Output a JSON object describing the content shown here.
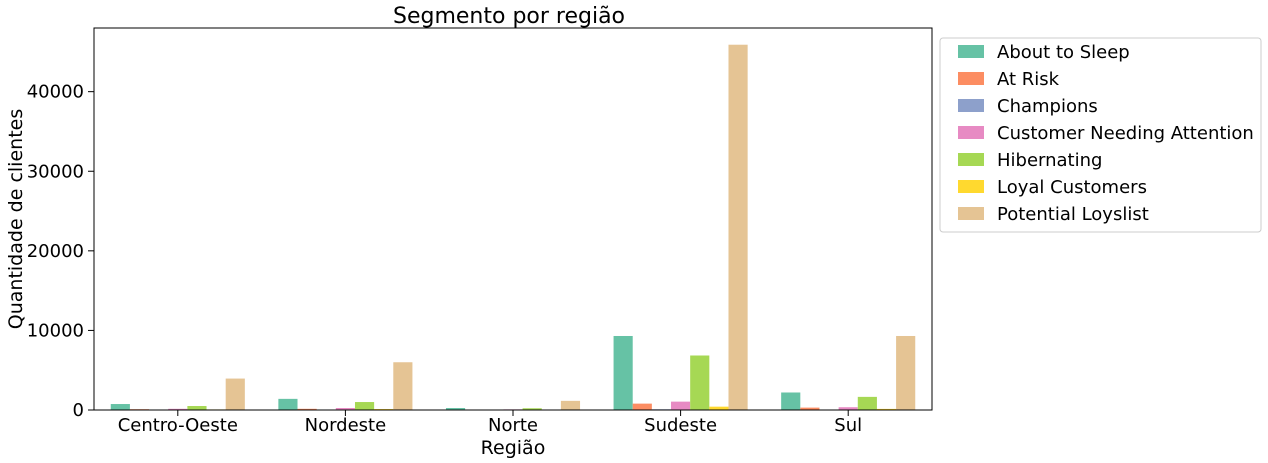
{
  "chart_data": {
    "type": "bar",
    "title": "Segmento por região",
    "xlabel": "Região",
    "ylabel": "Quantidade de clientes",
    "categories": [
      "Centro-Oeste",
      "Nordeste",
      "Norte",
      "Sudeste",
      "Sul"
    ],
    "ylim": [
      0,
      48000
    ],
    "yticks": [
      0,
      10000,
      20000,
      30000,
      40000
    ],
    "grid": false,
    "legend_position": "outside-right-top",
    "series": [
      {
        "name": "About to Sleep",
        "color": "#66c2a5",
        "values": [
          750,
          1400,
          250,
          9300,
          2200
        ]
      },
      {
        "name": "At Risk",
        "color": "#fc8d62",
        "values": [
          100,
          150,
          60,
          800,
          300
        ]
      },
      {
        "name": "Champions",
        "color": "#8da0cb",
        "values": [
          15,
          25,
          8,
          90,
          35
        ]
      },
      {
        "name": "Customer Needing Attention",
        "color": "#e78ac3",
        "values": [
          150,
          250,
          80,
          1050,
          350
        ]
      },
      {
        "name": "Hibernating",
        "color": "#a6d854",
        "values": [
          500,
          1000,
          220,
          6850,
          1650
        ]
      },
      {
        "name": "Loyal Customers",
        "color": "#ffd92f",
        "values": [
          70,
          120,
          30,
          420,
          140
        ]
      },
      {
        "name": "Potential Loyslist",
        "color": "#e5c494",
        "values": [
          3950,
          6000,
          1150,
          45900,
          9300
        ]
      }
    ]
  }
}
